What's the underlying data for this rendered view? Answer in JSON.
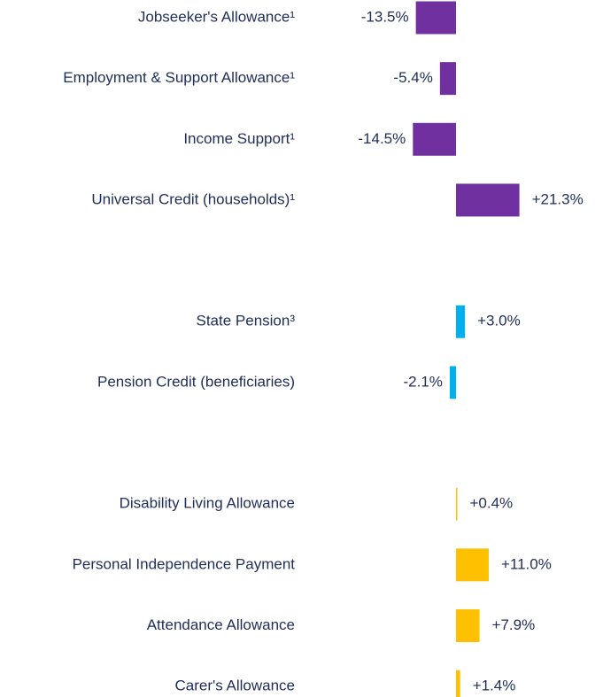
{
  "chart_data": {
    "type": "bar",
    "orientation": "horizontal",
    "categories": [
      "Jobseeker's Allowance¹",
      "Employment & Support Allowance¹",
      "Income Support¹",
      "Universal Credit (households)¹",
      null,
      "State Pension³",
      "Pension Credit (beneficiaries)",
      null,
      "Disability Living Allowance",
      "Personal Independence Payment",
      "Attendance Allowance",
      "Carer's Allowance"
    ],
    "values": [
      -13.5,
      -5.4,
      -14.5,
      21.3,
      null,
      3.0,
      -2.1,
      null,
      0.4,
      11.0,
      7.9,
      1.4
    ],
    "value_labels": [
      "-13.5%",
      "-5.4%",
      "-14.5%",
      "+21.3%",
      null,
      "+3.0%",
      "-2.1%",
      null,
      "+0.4%",
      "+11.0%",
      "+7.9%",
      "+1.4%"
    ],
    "colors": [
      "#7030a0",
      "#7030a0",
      "#7030a0",
      "#7030a0",
      null,
      "#00b0f0",
      "#00b0f0",
      null,
      "#ffc000",
      "#ffc000",
      "#ffc000",
      "#ffc000"
    ]
  }
}
